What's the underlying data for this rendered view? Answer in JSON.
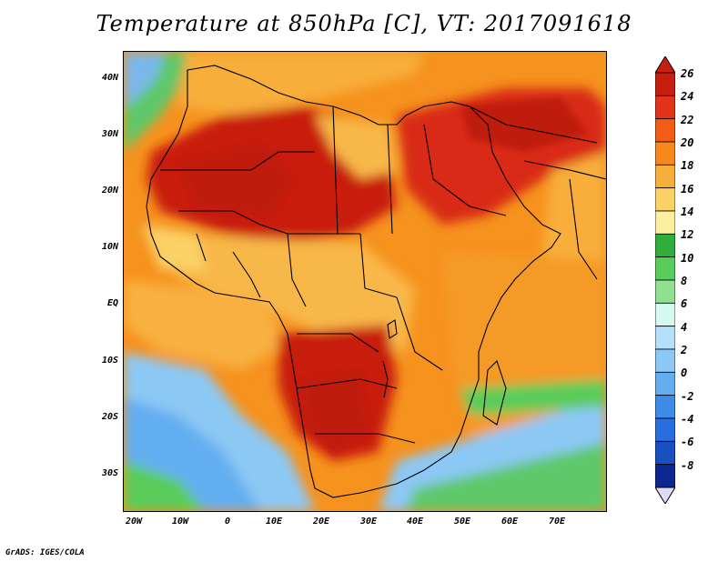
{
  "title": "Temperature at 850hPa [C], VT: 2017091618",
  "lat_ticks": [
    "40N",
    "30N",
    "20N",
    "10N",
    "EQ",
    "10S",
    "20S",
    "30S"
  ],
  "lon_ticks": [
    "20W",
    "10W",
    "0",
    "10E",
    "20E",
    "30E",
    "40E",
    "50E",
    "60E",
    "70E"
  ],
  "colorbar": {
    "labels": [
      "26",
      "24",
      "22",
      "20",
      "18",
      "16",
      "14",
      "12",
      "10",
      "8",
      "6",
      "4",
      "2",
      "0",
      "-2",
      "-4",
      "-6",
      "-8"
    ],
    "colors": [
      "#c81e10",
      "#e3341a",
      "#f25c14",
      "#f6891a",
      "#f8ae3a",
      "#fad266",
      "#fcf0a0",
      "#2fae3c",
      "#5acc5a",
      "#90e090",
      "#d6f8f0",
      "#b4e0fa",
      "#8cc8f4",
      "#64aef0",
      "#3c8ce8",
      "#286ee0",
      "#1850c0",
      "#0c2890"
    ],
    "end_cap_low_color": "#dcdcf8"
  },
  "credit": "GrADS: IGES/COLA"
}
